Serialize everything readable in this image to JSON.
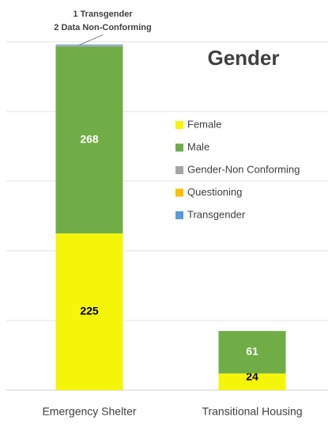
{
  "chart_data": {
    "type": "stacked_bar",
    "title": "Gender",
    "annotations": [
      "1 Transgender",
      "2 Data Non-Conforming"
    ],
    "categories": [
      "Emergency Shelter",
      "Transitional Housing"
    ],
    "series": [
      {
        "name": "Female",
        "color": "#f5f50a",
        "values": [
          225,
          24
        ],
        "data_labels": true,
        "label_color": "#000000"
      },
      {
        "name": "Male",
        "color": "#70ad47",
        "values": [
          268,
          61
        ],
        "data_labels": true,
        "label_color": "#ffffff"
      },
      {
        "name": "Gender-Non Conforming",
        "color": "#a5a5a5",
        "values": [
          2,
          0
        ],
        "data_labels": false
      },
      {
        "name": "Questioning",
        "color": "#ffc000",
        "values": [
          0,
          0
        ],
        "data_labels": false
      },
      {
        "name": "Transgender",
        "color": "#5b9bd5",
        "values": [
          1,
          0
        ],
        "data_labels": false
      }
    ],
    "ylim": [
      0,
      560
    ],
    "yticks": [
      0,
      100,
      200,
      300,
      400,
      500
    ],
    "grid": true
  }
}
